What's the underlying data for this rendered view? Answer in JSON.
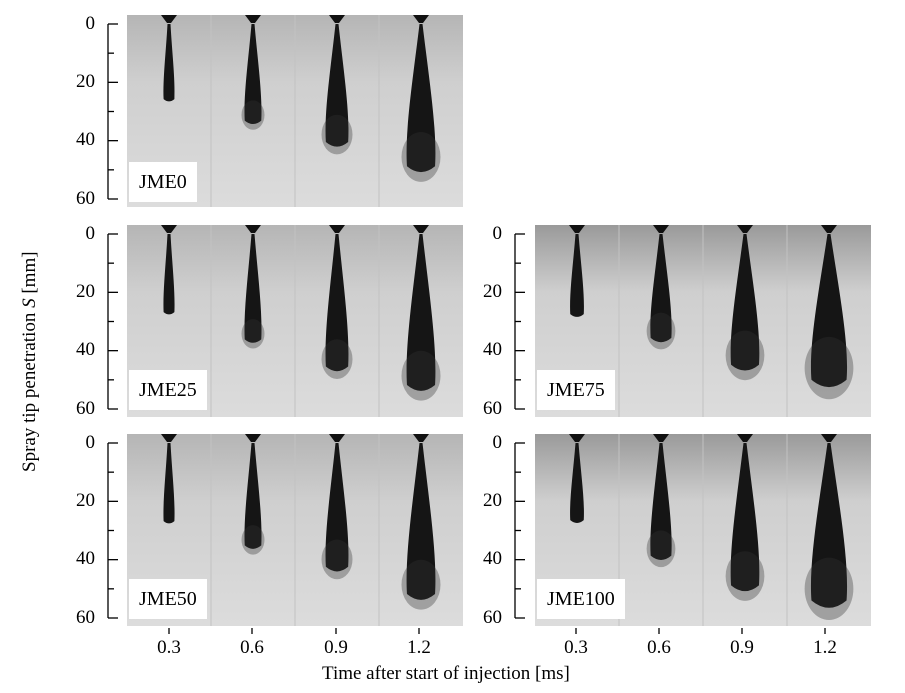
{
  "figure": {
    "y_axis_title_prefix": "Spray tip penetration ",
    "y_axis_title_symbol": "S",
    "y_axis_title_unit": " [mm]",
    "x_axis_title": "Time after start of injection [ms]",
    "y_ticks": [
      "0",
      "20",
      "40",
      "60"
    ],
    "x_ticks": [
      "0.3",
      "0.6",
      "0.9",
      "1.2"
    ]
  },
  "panels": [
    {
      "label": "JME0",
      "penetration_mm": [
        27,
        35,
        43,
        52
      ]
    },
    {
      "label": "JME25",
      "penetration_mm": [
        28,
        38,
        48,
        55
      ]
    },
    {
      "label": "JME75",
      "penetration_mm": [
        29,
        38,
        48,
        54
      ]
    },
    {
      "label": "JME50",
      "penetration_mm": [
        28,
        37,
        45,
        55
      ]
    },
    {
      "label": "JME100",
      "penetration_mm": [
        28,
        41,
        52,
        58
      ]
    }
  ]
}
